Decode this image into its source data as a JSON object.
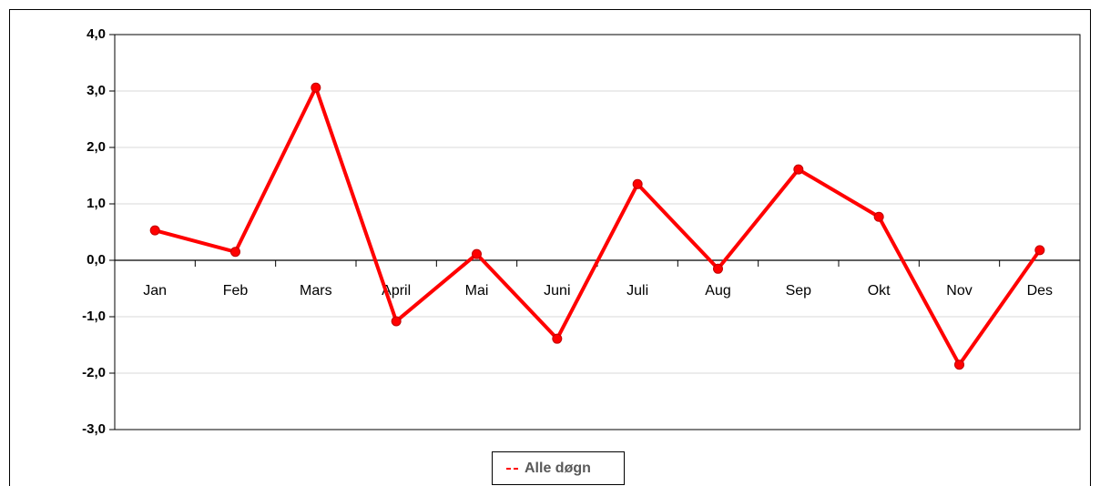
{
  "chart_data": {
    "type": "line",
    "categories": [
      "Jan",
      "Feb",
      "Mars",
      "April",
      "Mai",
      "Juni",
      "Juli",
      "Aug",
      "Sep",
      "Okt",
      "Nov",
      "Des"
    ],
    "series": [
      {
        "name": "Alle døgn",
        "color": "#ff0000",
        "values": [
          0.53,
          0.15,
          3.06,
          -1.08,
          0.11,
          -1.39,
          1.35,
          -0.15,
          1.61,
          0.77,
          -1.85,
          0.18
        ]
      }
    ],
    "ylim": [
      -3,
      4
    ],
    "yticks": [
      {
        "value": -3,
        "label": "-3,0"
      },
      {
        "value": -2,
        "label": "-2,0"
      },
      {
        "value": -1,
        "label": "-1,0"
      },
      {
        "value": 0,
        "label": "0,0"
      },
      {
        "value": 1,
        "label": "1,0"
      },
      {
        "value": 2,
        "label": "2,0"
      },
      {
        "value": 3,
        "label": "3,0"
      },
      {
        "value": 4,
        "label": "4,0"
      }
    ],
    "grid": true
  }
}
